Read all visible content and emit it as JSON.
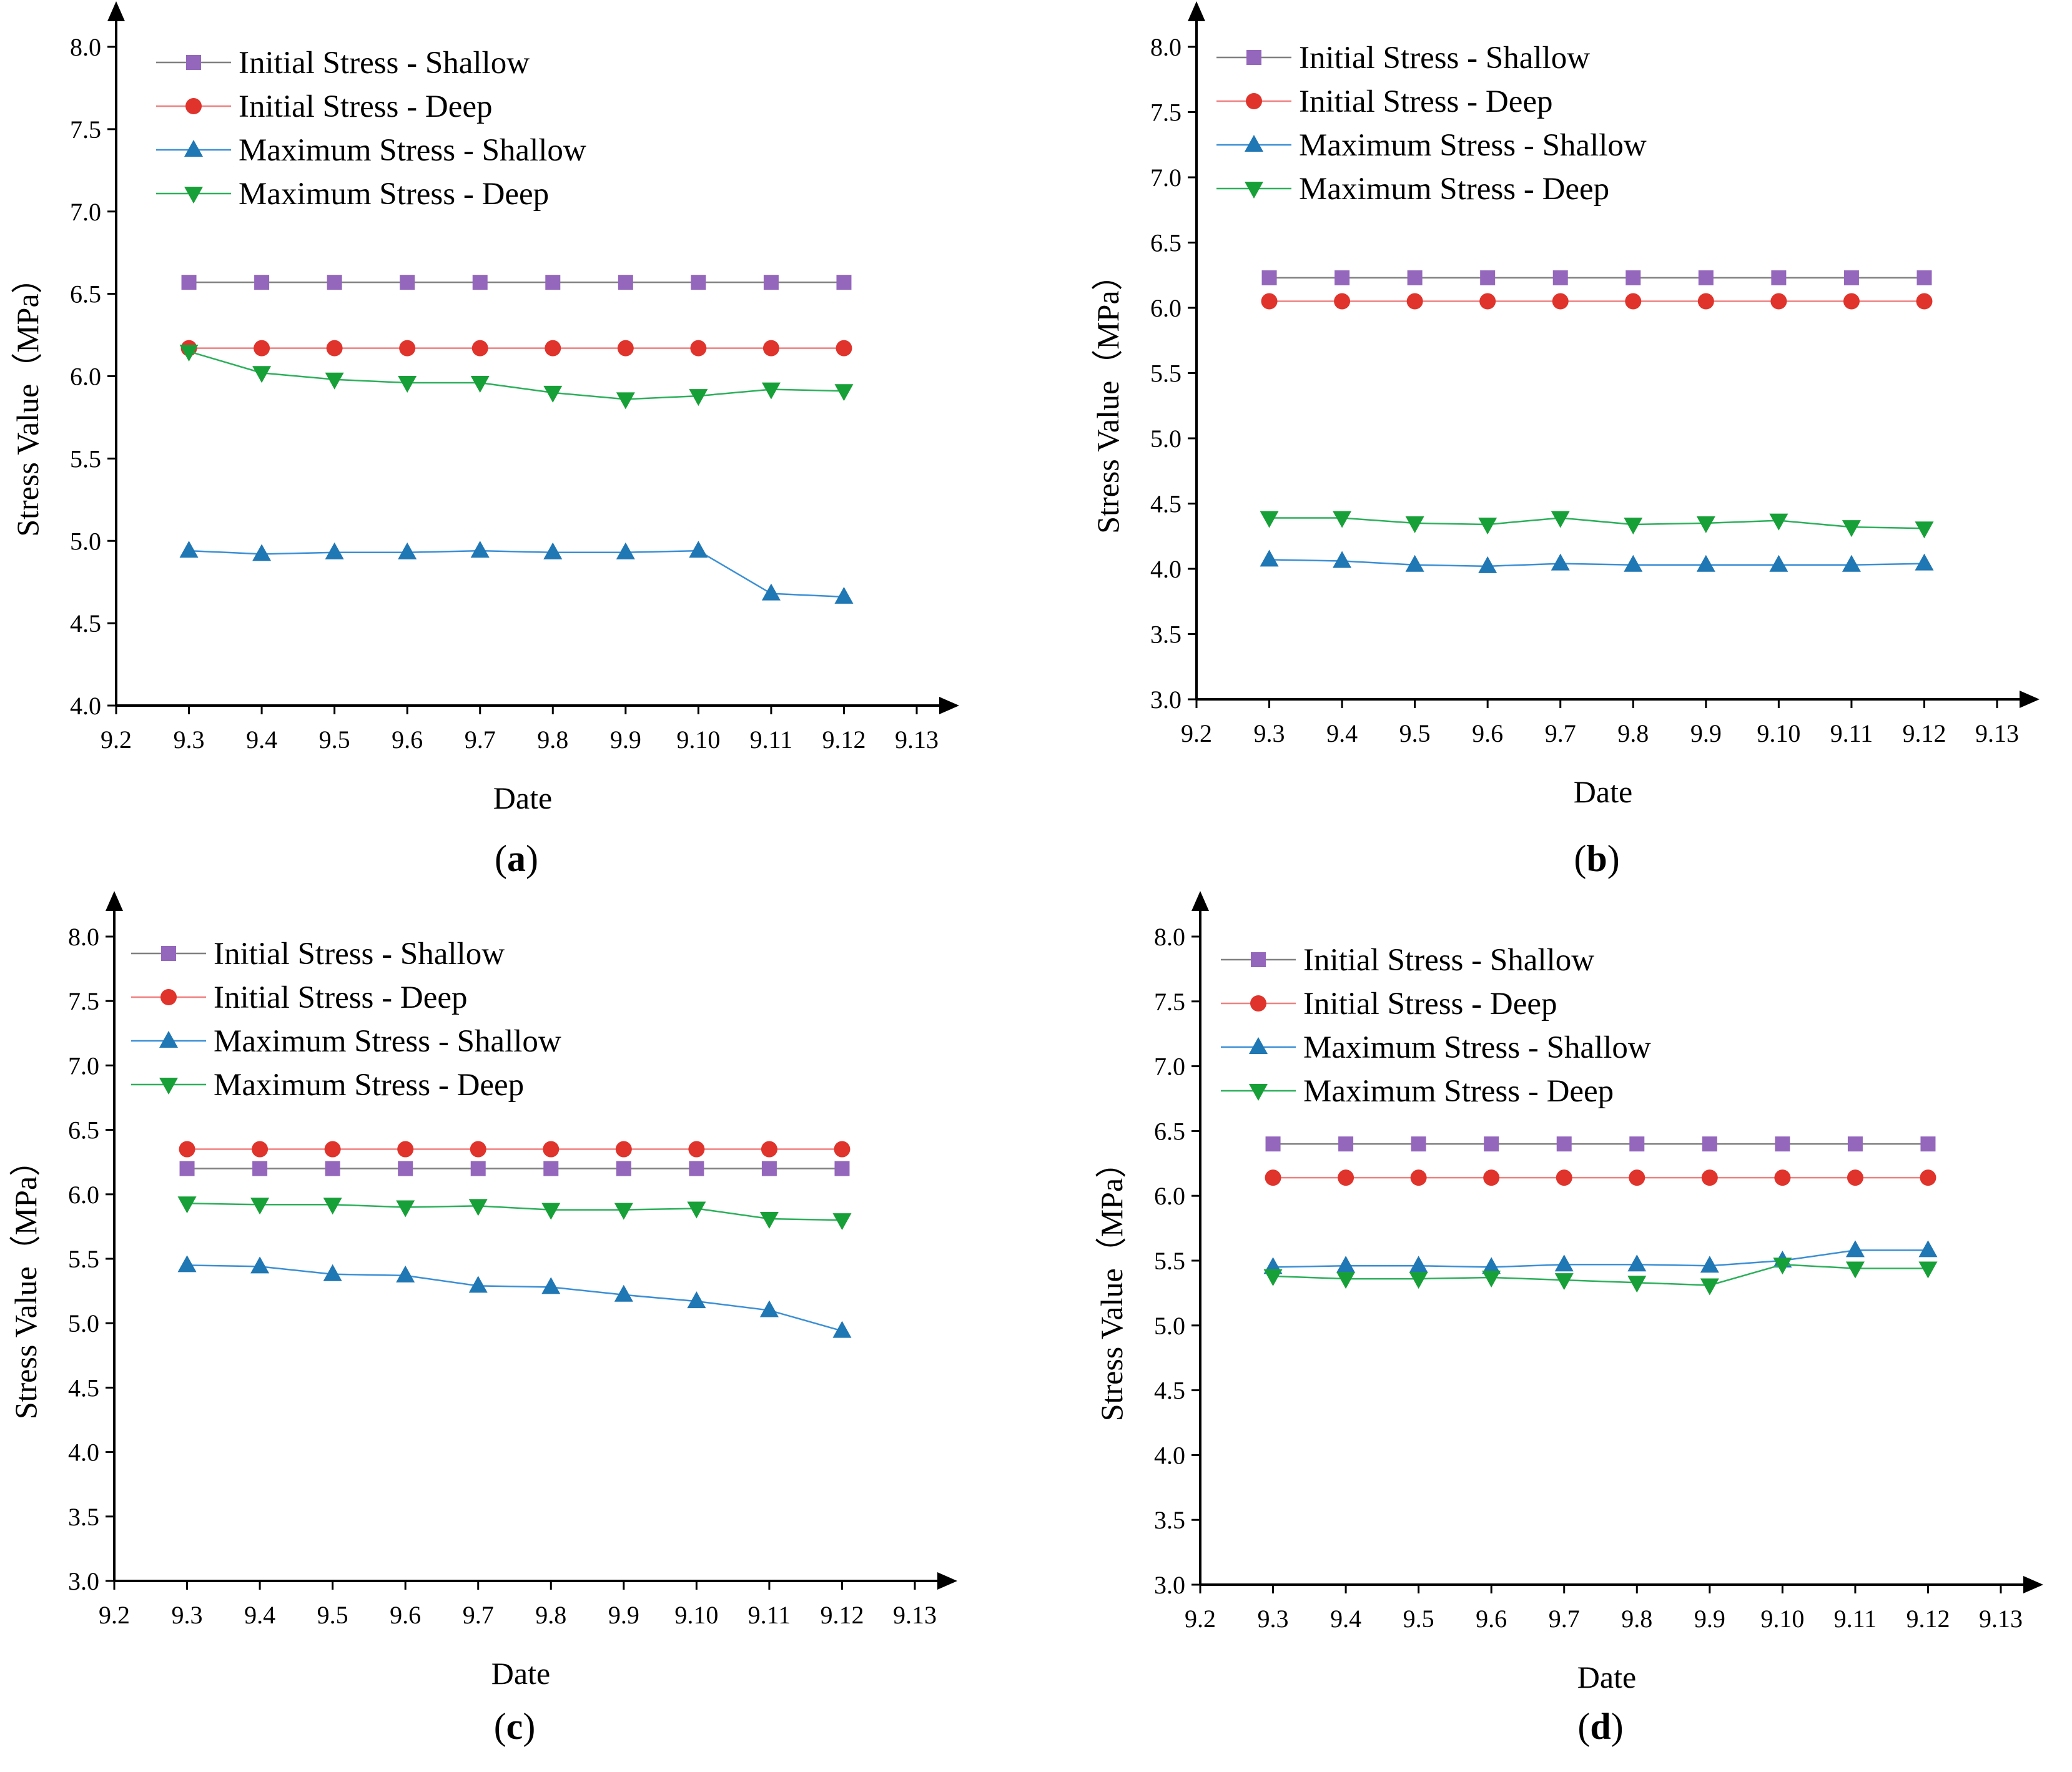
{
  "figure": {
    "description_free": true
  },
  "series_meta": [
    {
      "key": "initial_shallow",
      "name": "Initial Stress - Shallow",
      "color": "#9467bd",
      "line_color": "#7f7f7f",
      "marker": "square"
    },
    {
      "key": "initial_deep",
      "name": "Initial Stress - Deep",
      "color": "#e0332b",
      "line_color": "#f08080",
      "marker": "circle"
    },
    {
      "key": "max_shallow",
      "name": "Maximum Stress - Shallow",
      "color": "#1f77b4",
      "line_color": "#3a8fd6",
      "marker": "triangle-up"
    },
    {
      "key": "max_deep",
      "name": "Maximum Stress - Deep",
      "color": "#18a038",
      "line_color": "#2bb05a",
      "marker": "triangle-down"
    }
  ],
  "chart_data": [
    {
      "type": "line",
      "panel_label": "a",
      "xlabel": "Date",
      "ylabel": "Stress Value（MPa）",
      "x_ticks": [
        "9.2",
        "9.3",
        "9.4",
        "9.5",
        "9.6",
        "9.7",
        "9.8",
        "9.9",
        "9.10",
        "9.11",
        "9.12",
        "9.13"
      ],
      "categories": [
        "9.3",
        "9.4",
        "9.5",
        "9.6",
        "9.7",
        "9.8",
        "9.9",
        "9.10",
        "9.11",
        "9.12"
      ],
      "ylim": [
        4.0,
        8.0
      ],
      "y_ticks": [
        "4.0",
        "4.5",
        "5.0",
        "5.5",
        "6.0",
        "6.5",
        "7.0",
        "7.5",
        "8.0"
      ],
      "legend_position": "top-left",
      "series": [
        {
          "name": "Initial Stress - Shallow",
          "values": [
            6.57,
            6.57,
            6.57,
            6.57,
            6.57,
            6.57,
            6.57,
            6.57,
            6.57,
            6.57
          ]
        },
        {
          "name": "Initial Stress - Deep",
          "values": [
            6.17,
            6.17,
            6.17,
            6.17,
            6.17,
            6.17,
            6.17,
            6.17,
            6.17,
            6.17
          ]
        },
        {
          "name": "Maximum Stress - Shallow",
          "values": [
            4.94,
            4.92,
            4.93,
            4.93,
            4.94,
            4.93,
            4.93,
            4.94,
            4.68,
            4.66
          ]
        },
        {
          "name": "Maximum Stress - Deep",
          "values": [
            6.15,
            6.02,
            5.98,
            5.96,
            5.96,
            5.9,
            5.86,
            5.88,
            5.92,
            5.91
          ]
        }
      ]
    },
    {
      "type": "line",
      "panel_label": "b",
      "xlabel": "Date",
      "ylabel": "Stress Value（MPa）",
      "x_ticks": [
        "9.2",
        "9.3",
        "9.4",
        "9.5",
        "9.6",
        "9.7",
        "9.8",
        "9.9",
        "9.10",
        "9.11",
        "9.12",
        "9.13"
      ],
      "categories": [
        "9.3",
        "9.4",
        "9.5",
        "9.6",
        "9.7",
        "9.8",
        "9.9",
        "9.10",
        "9.11",
        "9.12"
      ],
      "ylim": [
        3.0,
        8.0
      ],
      "y_ticks": [
        "3.0",
        "3.5",
        "4.0",
        "4.5",
        "5.0",
        "5.5",
        "6.0",
        "6.5",
        "7.0",
        "7.5",
        "8.0"
      ],
      "legend_position": "top-left",
      "series": [
        {
          "name": "Initial Stress - Shallow",
          "values": [
            6.23,
            6.23,
            6.23,
            6.23,
            6.23,
            6.23,
            6.23,
            6.23,
            6.23,
            6.23
          ]
        },
        {
          "name": "Initial Stress - Deep",
          "values": [
            6.05,
            6.05,
            6.05,
            6.05,
            6.05,
            6.05,
            6.05,
            6.05,
            6.05,
            6.05
          ]
        },
        {
          "name": "Maximum Stress - Shallow",
          "values": [
            4.07,
            4.06,
            4.03,
            4.02,
            4.04,
            4.03,
            4.03,
            4.03,
            4.03,
            4.04
          ]
        },
        {
          "name": "Maximum Stress - Deep",
          "values": [
            4.39,
            4.39,
            4.35,
            4.34,
            4.39,
            4.34,
            4.35,
            4.37,
            4.32,
            4.31
          ]
        }
      ]
    },
    {
      "type": "line",
      "panel_label": "c",
      "xlabel": "Date",
      "ylabel": "Stress Value（MPa）",
      "x_ticks": [
        "9.2",
        "9.3",
        "9.4",
        "9.5",
        "9.6",
        "9.7",
        "9.8",
        "9.9",
        "9.10",
        "9.11",
        "9.12",
        "9.13"
      ],
      "categories": [
        "9.3",
        "9.4",
        "9.5",
        "9.6",
        "9.7",
        "9.8",
        "9.9",
        "9.10",
        "9.11",
        "9.12"
      ],
      "ylim": [
        3.0,
        8.0
      ],
      "y_ticks": [
        "3.0",
        "3.5",
        "4.0",
        "4.5",
        "5.0",
        "5.5",
        "6.0",
        "6.5",
        "7.0",
        "7.5",
        "8.0"
      ],
      "legend_position": "top-left",
      "series": [
        {
          "name": "Initial Stress - Shallow",
          "values": [
            6.2,
            6.2,
            6.2,
            6.2,
            6.2,
            6.2,
            6.2,
            6.2,
            6.2,
            6.2
          ]
        },
        {
          "name": "Initial Stress - Deep",
          "values": [
            6.35,
            6.35,
            6.35,
            6.35,
            6.35,
            6.35,
            6.35,
            6.35,
            6.35,
            6.35
          ]
        },
        {
          "name": "Maximum Stress - Shallow",
          "values": [
            5.45,
            5.44,
            5.38,
            5.37,
            5.29,
            5.28,
            5.22,
            5.17,
            5.1,
            4.94
          ]
        },
        {
          "name": "Maximum Stress - Deep",
          "values": [
            5.93,
            5.92,
            5.92,
            5.9,
            5.91,
            5.88,
            5.88,
            5.89,
            5.81,
            5.8
          ]
        }
      ]
    },
    {
      "type": "line",
      "panel_label": "d",
      "xlabel": "Date",
      "ylabel": "Stress Value（MPa）",
      "x_ticks": [
        "9.2",
        "9.3",
        "9.4",
        "9.5",
        "9.6",
        "9.7",
        "9.8",
        "9.9",
        "9.10",
        "9.11",
        "9.12",
        "9.13"
      ],
      "categories": [
        "9.3",
        "9.4",
        "9.5",
        "9.6",
        "9.7",
        "9.8",
        "9.9",
        "9.10",
        "9.11",
        "9.12"
      ],
      "ylim": [
        3.0,
        8.0
      ],
      "y_ticks": [
        "3.0",
        "3.5",
        "4.0",
        "4.5",
        "5.0",
        "5.5",
        "6.0",
        "6.5",
        "7.0",
        "7.5",
        "8.0"
      ],
      "legend_position": "top-left",
      "series": [
        {
          "name": "Initial Stress - Shallow",
          "values": [
            6.4,
            6.4,
            6.4,
            6.4,
            6.4,
            6.4,
            6.4,
            6.4,
            6.4,
            6.4
          ]
        },
        {
          "name": "Initial Stress - Deep",
          "values": [
            6.14,
            6.14,
            6.14,
            6.14,
            6.14,
            6.14,
            6.14,
            6.14,
            6.14,
            6.14
          ]
        },
        {
          "name": "Maximum Stress - Shallow",
          "values": [
            5.45,
            5.46,
            5.46,
            5.45,
            5.47,
            5.47,
            5.46,
            5.5,
            5.58,
            5.58
          ]
        },
        {
          "name": "Maximum Stress - Deep",
          "values": [
            5.38,
            5.36,
            5.36,
            5.37,
            5.35,
            5.33,
            5.31,
            5.47,
            5.44,
            5.44
          ]
        }
      ]
    }
  ]
}
